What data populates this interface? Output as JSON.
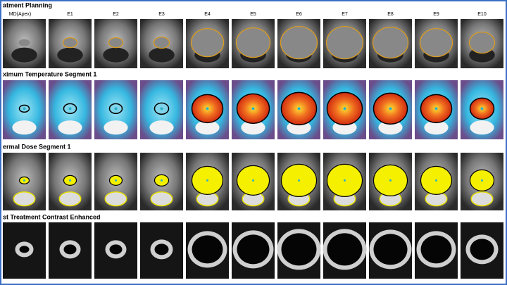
{
  "rows": [
    {
      "title": "atment Planning"
    },
    {
      "title": "ximum Temperature Segment 1"
    },
    {
      "title": "ermal Dose Segment 1"
    },
    {
      "title": "st Treatment Contrast Enhanced"
    }
  ],
  "columns": [
    "MD(Apex)",
    "E1",
    "E2",
    "E3",
    "E4",
    "E5",
    "E6",
    "E7",
    "E8",
    "E9",
    "E10"
  ]
}
